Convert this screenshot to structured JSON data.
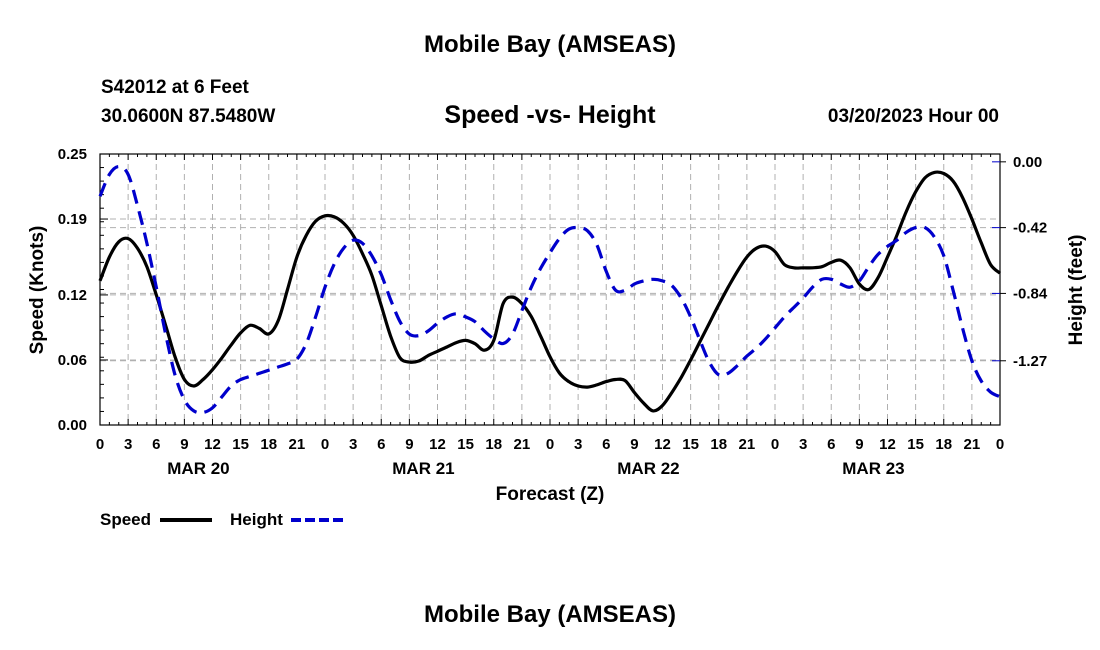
{
  "header": {
    "title": "Mobile Bay (AMSEAS)",
    "station": "S42012 at 6 Feet",
    "location": "30.0600N  87.5480W",
    "subtitle": "Speed -vs- Height",
    "datetime": "03/20/2023 Hour 00"
  },
  "footer": {
    "title": "Mobile Bay (AMSEAS)"
  },
  "colors": {
    "speed": "#000000",
    "height": "#0000cc",
    "grid": "#b0b0b0"
  },
  "chart_data": {
    "type": "line",
    "xlabel": "Forecast (Z)",
    "ylabel_left": "Speed (Knots)",
    "ylabel_right": "Height (feet)",
    "x_unit": "hours from 03/20/2023 00Z",
    "xlim": [
      0,
      96
    ],
    "ylim_left": [
      0.0,
      0.25
    ],
    "ylim_right": [
      -1.68,
      0.05
    ],
    "left_ticks": [
      "0.00",
      "0.06",
      "0.12",
      "0.19",
      "0.25"
    ],
    "right_ticks": [
      "0.00",
      "-0.42",
      "-0.84",
      "-1.27"
    ],
    "x_tick_labels": [
      "0",
      "3",
      "6",
      "9",
      "12",
      "15",
      "18",
      "21",
      "0",
      "3",
      "6",
      "9",
      "12",
      "15",
      "18",
      "21",
      "0",
      "3",
      "6",
      "9",
      "12",
      "15",
      "18",
      "21",
      "0",
      "3",
      "6",
      "9",
      "12",
      "15",
      "18",
      "21",
      "0"
    ],
    "day_labels": [
      "MAR 20",
      "MAR 21",
      "MAR 22",
      "MAR 23"
    ],
    "grid": true,
    "legend": "bottom-left",
    "series": [
      {
        "name": "Speed",
        "axis": "left",
        "style": "solid",
        "x": [
          0,
          1,
          2,
          3,
          4,
          5,
          6,
          7,
          8,
          9,
          10,
          11,
          12,
          13,
          14,
          15,
          16,
          17,
          18,
          19,
          20,
          21,
          22,
          23,
          24,
          25,
          26,
          27,
          28,
          29,
          30,
          31,
          32,
          33,
          34,
          35,
          36,
          37,
          38,
          39,
          40,
          41,
          42,
          43,
          44,
          45,
          46,
          47,
          48,
          49,
          50,
          51,
          52,
          53,
          54,
          55,
          56,
          57,
          58,
          59,
          60,
          61,
          62,
          63,
          64,
          65,
          66,
          67,
          68,
          69,
          70,
          71,
          72,
          73,
          74,
          75,
          76,
          77,
          78,
          79,
          80,
          81,
          82,
          83,
          84,
          85,
          86,
          87,
          88,
          89,
          90,
          91,
          92,
          93,
          94,
          95,
          96
        ],
        "y": [
          0.133,
          0.155,
          0.169,
          0.172,
          0.163,
          0.146,
          0.12,
          0.092,
          0.063,
          0.042,
          0.036,
          0.042,
          0.051,
          0.062,
          0.074,
          0.085,
          0.092,
          0.089,
          0.084,
          0.096,
          0.125,
          0.155,
          0.175,
          0.188,
          0.193,
          0.192,
          0.186,
          0.175,
          0.158,
          0.138,
          0.11,
          0.082,
          0.062,
          0.058,
          0.059,
          0.064,
          0.068,
          0.072,
          0.076,
          0.078,
          0.075,
          0.069,
          0.078,
          0.112,
          0.118,
          0.112,
          0.1,
          0.082,
          0.063,
          0.048,
          0.04,
          0.036,
          0.035,
          0.037,
          0.04,
          0.042,
          0.041,
          0.03,
          0.02,
          0.013,
          0.018,
          0.03,
          0.044,
          0.06,
          0.077,
          0.094,
          0.111,
          0.127,
          0.142,
          0.155,
          0.163,
          0.165,
          0.16,
          0.148,
          0.145,
          0.145,
          0.145,
          0.146,
          0.15,
          0.152,
          0.145,
          0.13,
          0.125,
          0.136,
          0.155,
          0.175,
          0.197,
          0.215,
          0.228,
          0.233,
          0.232,
          0.225,
          0.21,
          0.19,
          0.168,
          0.148,
          0.14
        ]
      },
      {
        "name": "Height",
        "axis": "right",
        "style": "dashed",
        "x": [
          0,
          1,
          2,
          3,
          4,
          5,
          6,
          7,
          8,
          9,
          10,
          11,
          12,
          13,
          14,
          15,
          16,
          17,
          18,
          19,
          20,
          21,
          22,
          23,
          24,
          25,
          26,
          27,
          28,
          29,
          30,
          31,
          32,
          33,
          34,
          35,
          36,
          37,
          38,
          39,
          40,
          41,
          42,
          43,
          44,
          45,
          46,
          47,
          48,
          49,
          50,
          51,
          52,
          53,
          54,
          55,
          56,
          57,
          58,
          59,
          60,
          61,
          62,
          63,
          64,
          65,
          66,
          67,
          68,
          69,
          70,
          71,
          72,
          73,
          74,
          75,
          76,
          77,
          78,
          79,
          80,
          81,
          82,
          83,
          84,
          85,
          86,
          87,
          88,
          89,
          90,
          91,
          92,
          93,
          94,
          95,
          96
        ],
        "y": [
          -0.22,
          -0.08,
          -0.03,
          -0.08,
          -0.28,
          -0.52,
          -0.8,
          -1.1,
          -1.36,
          -1.52,
          -1.59,
          -1.6,
          -1.57,
          -1.5,
          -1.43,
          -1.39,
          -1.37,
          -1.35,
          -1.33,
          -1.31,
          -1.29,
          -1.26,
          -1.16,
          -0.99,
          -0.8,
          -0.65,
          -0.55,
          -0.5,
          -0.52,
          -0.6,
          -0.72,
          -0.88,
          -1.02,
          -1.1,
          -1.11,
          -1.08,
          -1.03,
          -0.99,
          -0.97,
          -0.99,
          -1.02,
          -1.08,
          -1.13,
          -1.16,
          -1.1,
          -0.95,
          -0.8,
          -0.68,
          -0.58,
          -0.49,
          -0.43,
          -0.42,
          -0.44,
          -0.53,
          -0.7,
          -0.82,
          -0.82,
          -0.78,
          -0.76,
          -0.75,
          -0.76,
          -0.79,
          -0.87,
          -0.99,
          -1.14,
          -1.28,
          -1.36,
          -1.35,
          -1.3,
          -1.24,
          -1.19,
          -1.13,
          -1.06,
          -0.99,
          -0.93,
          -0.87,
          -0.8,
          -0.75,
          -0.75,
          -0.78,
          -0.8,
          -0.76,
          -0.67,
          -0.59,
          -0.54,
          -0.5,
          -0.45,
          -0.42,
          -0.42,
          -0.48,
          -0.6,
          -0.82,
          -1.06,
          -1.27,
          -1.4,
          -1.47,
          -1.5
        ]
      }
    ]
  }
}
